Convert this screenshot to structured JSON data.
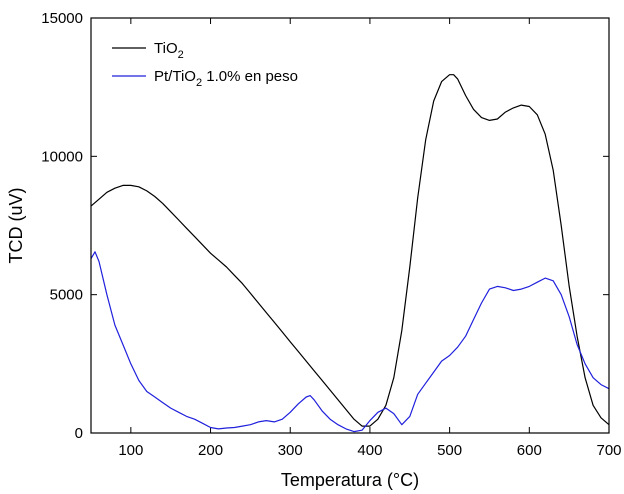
{
  "chart_data": {
    "type": "line",
    "title": "",
    "xlabel": "Temperatura (°C)",
    "ylabel": "TCD (uV)",
    "xlim": [
      50,
      700
    ],
    "ylim": [
      0,
      15000
    ],
    "xticks": [
      100,
      200,
      300,
      400,
      500,
      600,
      700
    ],
    "yticks": [
      0,
      5000,
      10000,
      15000
    ],
    "xtick_labels": [
      "100",
      "200",
      "300",
      "400",
      "500",
      "600",
      "700"
    ],
    "ytick_labels": [
      "0",
      "5000",
      "10000",
      "15000"
    ],
    "legend_position": "top-left",
    "series": [
      {
        "name": "TiO2",
        "legend_main": "TiO",
        "legend_sub": "2",
        "legend_rest": "",
        "color": "#000000",
        "x": [
          50,
          60,
          70,
          80,
          90,
          100,
          110,
          120,
          130,
          140,
          150,
          160,
          170,
          180,
          190,
          200,
          210,
          220,
          230,
          240,
          250,
          260,
          270,
          280,
          290,
          300,
          310,
          320,
          330,
          340,
          350,
          360,
          370,
          380,
          390,
          400,
          410,
          420,
          430,
          440,
          450,
          460,
          470,
          480,
          490,
          500,
          505,
          510,
          520,
          530,
          540,
          550,
          560,
          570,
          580,
          590,
          600,
          610,
          620,
          630,
          640,
          650,
          660,
          670,
          680,
          690,
          700
        ],
        "y": [
          8200,
          8450,
          8700,
          8850,
          8950,
          8950,
          8900,
          8750,
          8550,
          8300,
          8000,
          7700,
          7400,
          7100,
          6800,
          6500,
          6250,
          6000,
          5700,
          5400,
          5050,
          4700,
          4350,
          4000,
          3650,
          3300,
          2950,
          2600,
          2250,
          1900,
          1550,
          1200,
          850,
          500,
          250,
          250,
          500,
          1000,
          2000,
          3700,
          6000,
          8500,
          10600,
          12000,
          12700,
          12950,
          12950,
          12800,
          12200,
          11700,
          11400,
          11300,
          11350,
          11600,
          11750,
          11850,
          11800,
          11500,
          10800,
          9500,
          7500,
          5300,
          3500,
          2000,
          1000,
          550,
          300
        ]
      },
      {
        "name": "Pt/TiO2 1.0% en peso",
        "legend_main": "Pt/TiO",
        "legend_sub": "2",
        "legend_rest": " 1.0% en peso",
        "color": "#2020dd",
        "x": [
          50,
          55,
          60,
          70,
          80,
          90,
          100,
          110,
          120,
          130,
          140,
          150,
          160,
          170,
          180,
          190,
          200,
          210,
          220,
          230,
          240,
          250,
          260,
          270,
          280,
          290,
          300,
          310,
          320,
          325,
          330,
          340,
          350,
          360,
          370,
          380,
          390,
          400,
          410,
          420,
          430,
          440,
          450,
          460,
          470,
          480,
          490,
          500,
          510,
          520,
          530,
          540,
          550,
          560,
          570,
          580,
          590,
          600,
          610,
          620,
          630,
          640,
          650,
          660,
          670,
          680,
          690,
          700
        ],
        "y": [
          6300,
          6550,
          6200,
          5000,
          3900,
          3200,
          2500,
          1900,
          1500,
          1300,
          1100,
          900,
          750,
          600,
          500,
          350,
          200,
          150,
          180,
          200,
          250,
          300,
          400,
          450,
          400,
          500,
          750,
          1050,
          1300,
          1350,
          1200,
          800,
          500,
          300,
          150,
          50,
          100,
          450,
          750,
          900,
          700,
          300,
          600,
          1400,
          1800,
          2200,
          2600,
          2800,
          3100,
          3500,
          4100,
          4700,
          5200,
          5300,
          5250,
          5150,
          5200,
          5300,
          5450,
          5600,
          5500,
          5000,
          4200,
          3200,
          2500,
          2000,
          1750,
          1600
        ]
      }
    ]
  }
}
